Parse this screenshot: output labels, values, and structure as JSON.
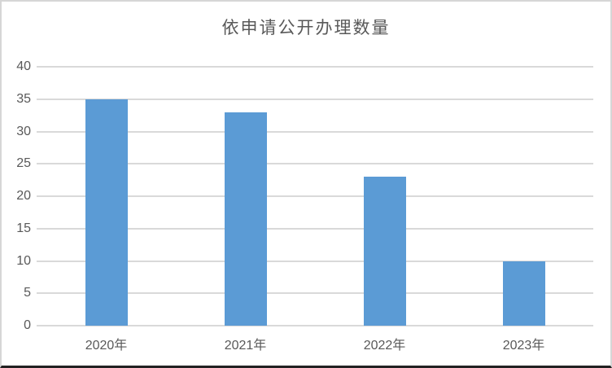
{
  "chart_data": {
    "type": "bar",
    "title": "依申请公开办理数量",
    "categories": [
      "2020年",
      "2021年",
      "2022年",
      "2023年"
    ],
    "values": [
      35,
      33,
      23,
      10
    ],
    "xlabel": "",
    "ylabel": "",
    "ylim": [
      0,
      40
    ],
    "ytick_step": 5,
    "grid": true,
    "legend_position": "none",
    "bar_color": "#5B9BD5",
    "gridline_color": "#D9D9D9",
    "label_color": "#595959",
    "frame_border_color": "#D6D6D6",
    "frame_bottom_color": "#222222"
  }
}
